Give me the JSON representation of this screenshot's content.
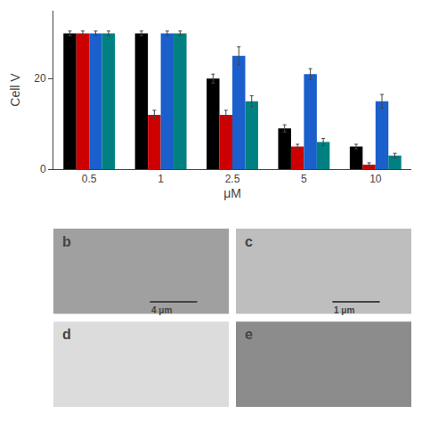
{
  "chart_data": {
    "type": "bar",
    "xlabel": "μM",
    "ylabel": "Cell V",
    "categories": [
      "0.5",
      "1",
      "2.5",
      "5",
      "10"
    ],
    "series": [
      {
        "color": "#000000",
        "values": [
          30,
          30,
          20,
          9,
          5
        ],
        "errors": [
          0.5,
          0.5,
          1.0,
          0.8,
          0.5
        ]
      },
      {
        "color": "#cc0000",
        "values": [
          30,
          12,
          12,
          5,
          1
        ],
        "errors": [
          0.5,
          1.0,
          1.0,
          0.5,
          0.4
        ]
      },
      {
        "color": "#1a5fcc",
        "values": [
          30,
          30,
          25,
          21,
          15
        ],
        "errors": [
          0.5,
          0.5,
          2.0,
          1.2,
          1.5
        ]
      },
      {
        "color": "#008080",
        "values": [
          30,
          30,
          15,
          6,
          3
        ],
        "errors": [
          0.5,
          0.5,
          1.2,
          0.8,
          0.5
        ]
      }
    ],
    "ylim": [
      0,
      35
    ],
    "yticks": [
      0,
      20
    ],
    "grid": false,
    "annotations": [
      {
        "text": "b",
        "detail": "4 μm",
        "color": "#a0a0a0"
      },
      {
        "text": "c",
        "detail": "1 μm",
        "color": "#bebebe"
      },
      {
        "text": "d",
        "color": "#dcdcdc"
      },
      {
        "text": "e",
        "color": "#8c8c8c"
      }
    ]
  }
}
